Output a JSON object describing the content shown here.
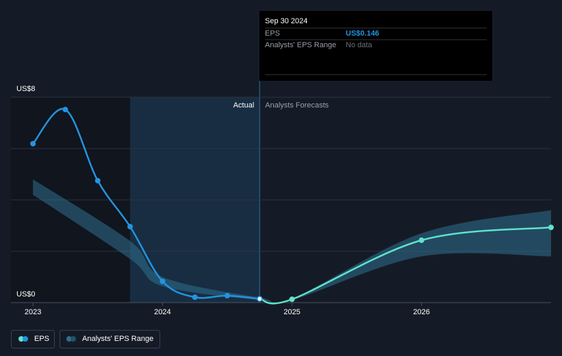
{
  "chart_data": {
    "type": "line",
    "label_actual": "Actual",
    "label_forecast": "Analysts Forecasts",
    "xlim": [
      2022.83,
      2027
    ],
    "xticks": [
      2023,
      2024,
      2025,
      2026
    ],
    "ylim": [
      0,
      8
    ],
    "yticks": [
      {
        "value": 0,
        "label": "US$0"
      },
      {
        "value": 2,
        "label": null
      },
      {
        "value": 4,
        "label": null
      },
      {
        "value": 6,
        "label": null
      },
      {
        "value": 8,
        "label": "US$8"
      }
    ],
    "grid": true,
    "series": [
      {
        "name": "EPS",
        "color": "#2394df",
        "x": [
          2023,
          2023.25,
          2023.5,
          2023.75,
          2024,
          2024.25,
          2024.5,
          2024.75
        ],
        "values": [
          6.19,
          7.52,
          4.75,
          2.96,
          0.83,
          0.21,
          0.27,
          0.146
        ],
        "forecast": {
          "color": "#5ee3cb",
          "x": [
            2025,
            2026,
            2027
          ],
          "values": [
            0.13,
            2.43,
            2.93
          ]
        }
      }
    ],
    "range": {
      "name": "Analysts' EPS Range",
      "color": "#2f6f8f",
      "x": [
        2023,
        2023.75,
        2024,
        2024.75,
        2025,
        2026,
        2027
      ],
      "low": [
        4.2,
        1.7,
        0.64,
        0.1,
        0.1,
        1.8,
        1.8
      ],
      "high": [
        4.8,
        2.4,
        1.0,
        0.2,
        0.15,
        2.7,
        3.6
      ]
    },
    "tooltip": {
      "date": "Sep 30 2024",
      "rows": [
        {
          "label": "EPS",
          "value": "US$0.146"
        },
        {
          "label": "Analysts' EPS Range",
          "value": "No data"
        }
      ]
    }
  }
}
